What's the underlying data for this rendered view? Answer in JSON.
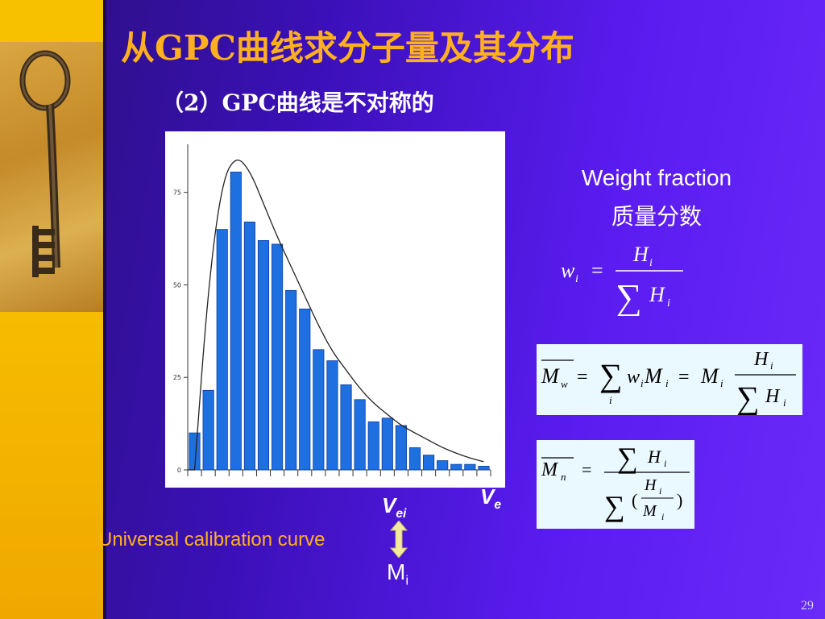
{
  "slide": {
    "title": "从GPC曲线求分子量及其分布",
    "subtitle": "（2）GPC曲线是不对称的",
    "page_number": "29"
  },
  "chart_data": {
    "type": "bar",
    "title": "",
    "xlabel": "",
    "ylabel": "",
    "ylim": [
      0,
      88
    ],
    "y_ticks": [
      0,
      25,
      50,
      75
    ],
    "values": [
      10,
      21.5,
      65,
      80.5,
      67,
      62,
      61,
      48.5,
      43.5,
      32.5,
      29.5,
      23,
      19,
      13,
      14,
      12,
      6,
      4,
      2.5,
      1.5,
      1.5,
      1
    ],
    "curve": [
      [
        0,
        0
      ],
      [
        1,
        50
      ],
      [
        2,
        78
      ],
      [
        3,
        85
      ],
      [
        4,
        81
      ],
      [
        5,
        72
      ],
      [
        6,
        63
      ],
      [
        7,
        55
      ],
      [
        8,
        47
      ],
      [
        9,
        39
      ],
      [
        10,
        32
      ],
      [
        11,
        27
      ],
      [
        12,
        22
      ],
      [
        13,
        18
      ],
      [
        14,
        15
      ],
      [
        15,
        12
      ],
      [
        16,
        10
      ],
      [
        17,
        8
      ],
      [
        18,
        6
      ],
      [
        19,
        4.5
      ],
      [
        20,
        3.2
      ],
      [
        21,
        2.2
      ]
    ]
  },
  "annotations": {
    "hi": "H",
    "hi_sub": "i",
    "vei": "V",
    "vei_sub": "ei",
    "ve": "V",
    "ve_sub": "e",
    "calibration": "Universal calibration curve",
    "mi": "M",
    "mi_sub": "i"
  },
  "weight_fraction": {
    "label_en": "Weight fraction",
    "label_cn": "质量分数"
  },
  "equations": {
    "wi": "w_i = H_i / ΣH_i",
    "mw": "M̄_w = Σ_i w_i M_i = M_i H_i / ΣH_i",
    "mn": "M̄_n = ΣH_i / Σ(H_i / M_i)"
  },
  "colors": {
    "title": "#ffb020",
    "bar": "#1e6fe0",
    "formula_box": "#eaf8ff",
    "arrow": "#f3e9a0"
  }
}
